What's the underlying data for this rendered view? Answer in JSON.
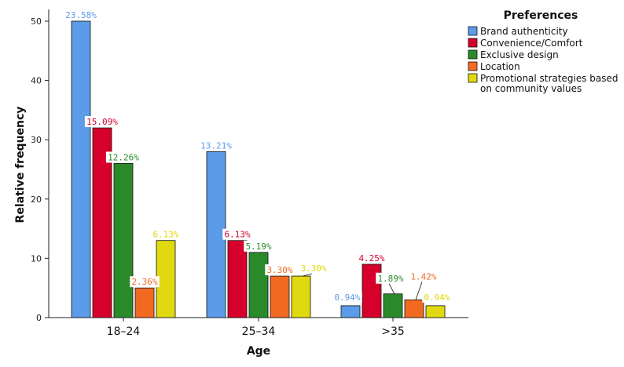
{
  "chart_data": {
    "type": "bar",
    "xlabel": "Age",
    "ylabel": "Relative frequency",
    "ylim": [
      0,
      50
    ],
    "yticks": [
      0,
      10,
      20,
      30,
      40,
      50
    ],
    "grid": false,
    "legend_placement": "top-right",
    "legend_title": "Preferences",
    "categories": [
      "18–24",
      "25–34",
      ">35"
    ],
    "series": [
      {
        "name": "Brand authenticity",
        "color": "#5b9be8",
        "values": [
          50,
          28,
          2
        ],
        "labels": [
          "23.58%",
          "13.21%",
          "0.94%"
        ]
      },
      {
        "name": "Convenience/Comfort",
        "color": "#d6002c",
        "values": [
          32,
          13,
          9
        ],
        "labels": [
          "15.09%",
          "6.13%",
          "4.25%"
        ]
      },
      {
        "name": "Exclusive design",
        "color": "#2a8a2a",
        "values": [
          26,
          11,
          4
        ],
        "labels": [
          "12.26%",
          "5.19%",
          "1.89%"
        ]
      },
      {
        "name": "Location",
        "color": "#f26a22",
        "values": [
          5,
          7,
          3
        ],
        "labels": [
          "2.36%",
          "3.30%",
          "1.42%"
        ]
      },
      {
        "name": "Promotional strategies based on community values",
        "legend_lines": [
          "Promotional strategies based",
          "on community values"
        ],
        "color": "#e0d90f",
        "values": [
          13,
          7,
          2
        ],
        "labels": [
          "6.13%",
          "3.30%",
          "0.94%"
        ]
      }
    ]
  }
}
